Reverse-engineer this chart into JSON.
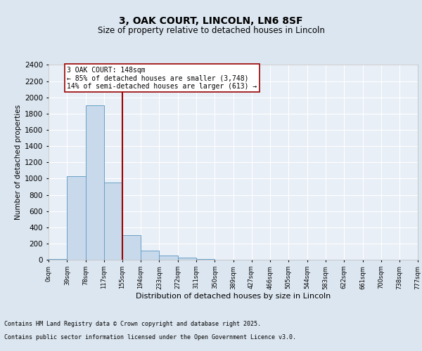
{
  "title": "3, OAK COURT, LINCOLN, LN6 8SF",
  "subtitle": "Size of property relative to detached houses in Lincoln",
  "xlabel": "Distribution of detached houses by size in Lincoln",
  "ylabel": "Number of detached properties",
  "bar_color": "#c8d9eb",
  "bar_edge_color": "#6aa0c7",
  "vline_color": "#990000",
  "vline_x": 155,
  "bin_edges": [
    0,
    39,
    78,
    117,
    155,
    194,
    233,
    272,
    311,
    350,
    389,
    427,
    466,
    505,
    544,
    583,
    622,
    661,
    700,
    738,
    777
  ],
  "bar_heights": [
    8,
    1030,
    1900,
    950,
    300,
    110,
    50,
    25,
    5,
    0,
    0,
    0,
    0,
    0,
    0,
    0,
    0,
    0,
    0,
    0
  ],
  "ylim": [
    0,
    2400
  ],
  "yticks": [
    0,
    200,
    400,
    600,
    800,
    1000,
    1200,
    1400,
    1600,
    1800,
    2000,
    2200,
    2400
  ],
  "annotation_text": "3 OAK COURT: 148sqm\n← 85% of detached houses are smaller (3,748)\n14% of semi-detached houses are larger (613) →",
  "annotation_box_facecolor": "#ffffff",
  "annotation_box_edgecolor": "#990000",
  "footer_line1": "Contains HM Land Registry data © Crown copyright and database right 2025.",
  "footer_line2": "Contains public sector information licensed under the Open Government Licence v3.0.",
  "bg_color": "#dce6f0",
  "plot_bg_color": "#e8eff7",
  "grid_color": "#ffffff",
  "tick_labels": [
    "0sqm",
    "39sqm",
    "78sqm",
    "117sqm",
    "155sqm",
    "194sqm",
    "233sqm",
    "272sqm",
    "311sqm",
    "350sqm",
    "389sqm",
    "427sqm",
    "466sqm",
    "505sqm",
    "544sqm",
    "583sqm",
    "622sqm",
    "661sqm",
    "700sqm",
    "738sqm",
    "777sqm"
  ],
  "title_fontsize": 10,
  "subtitle_fontsize": 8.5,
  "ylabel_fontsize": 7.5,
  "xlabel_fontsize": 8,
  "ytick_fontsize": 7.5,
  "xtick_fontsize": 6,
  "annot_fontsize": 7,
  "footer_fontsize": 6
}
